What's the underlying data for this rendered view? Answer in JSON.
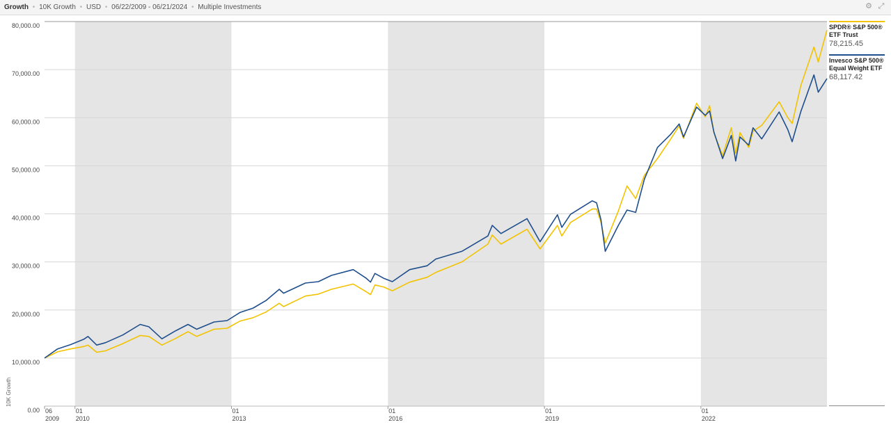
{
  "header": {
    "crumbs": [
      "Growth",
      "10K Growth",
      "USD",
      "06/22/2009 - 06/21/2024",
      "Multiple Investments"
    ],
    "settings_icon": "gear-icon",
    "expand_icon": "expand-icon"
  },
  "chart_data": {
    "type": "line",
    "title": "",
    "xlabel": "",
    "ylabel": "10K Growth",
    "ylim": [
      0,
      80000
    ],
    "y_ticks": [
      "80,000.00",
      "70,000.00",
      "60,000.00",
      "50,000.00",
      "40,000.00",
      "30,000.00",
      "20,000.00",
      "10,000.00",
      "0.00"
    ],
    "x_ticks": [
      {
        "month": "06",
        "year": "2009",
        "date": "2009-06"
      },
      {
        "month": "01",
        "year": "2010",
        "date": "2010-01"
      },
      {
        "month": "01",
        "year": "2013",
        "date": "2013-01"
      },
      {
        "month": "01",
        "year": "2016",
        "date": "2016-01"
      },
      {
        "month": "01",
        "year": "2019",
        "date": "2019-01"
      },
      {
        "month": "01",
        "year": "2022",
        "date": "2022-01"
      }
    ],
    "shaded_periods": [
      [
        "2010-01",
        "2013-01"
      ],
      [
        "2016-01",
        "2019-01"
      ],
      [
        "2022-01",
        "2024-06"
      ]
    ],
    "grid": true,
    "legend_position": "right",
    "colors": {
      "spy": "#f2c300",
      "rsp": "#1f4e8c",
      "shade": "#e5e5e5",
      "grid": "#d6d6d6"
    },
    "series": [
      {
        "name": "SPDR® S&P 500® ETF Trust",
        "legend_lines": [
          "SPDR® S&P 500®",
          "ETF Trust"
        ],
        "final_value": "78,215.45",
        "color": "#f2c300",
        "points": [
          [
            "2009-06",
            10000
          ],
          [
            "2009-09",
            11300
          ],
          [
            "2009-12",
            11900
          ],
          [
            "2010-03",
            12400
          ],
          [
            "2010-04",
            12700
          ],
          [
            "2010-06",
            11200
          ],
          [
            "2010-08",
            11500
          ],
          [
            "2010-12",
            13000
          ],
          [
            "2011-04",
            14700
          ],
          [
            "2011-06",
            14500
          ],
          [
            "2011-09",
            12700
          ],
          [
            "2011-12",
            14000
          ],
          [
            "2012-03",
            15500
          ],
          [
            "2012-05",
            14500
          ],
          [
            "2012-09",
            16000
          ],
          [
            "2012-12",
            16200
          ],
          [
            "2013-03",
            17700
          ],
          [
            "2013-06",
            18400
          ],
          [
            "2013-09",
            19600
          ],
          [
            "2013-12",
            21400
          ],
          [
            "2014-01",
            20700
          ],
          [
            "2014-06",
            22900
          ],
          [
            "2014-09",
            23300
          ],
          [
            "2014-12",
            24300
          ],
          [
            "2015-05",
            25400
          ],
          [
            "2015-08",
            23800
          ],
          [
            "2015-09",
            23200
          ],
          [
            "2015-10",
            25200
          ],
          [
            "2015-12",
            24800
          ],
          [
            "2016-02",
            24000
          ],
          [
            "2016-06",
            25800
          ],
          [
            "2016-10",
            26800
          ],
          [
            "2016-12",
            27800
          ],
          [
            "2017-06",
            30000
          ],
          [
            "2017-12",
            33700
          ],
          [
            "2018-01",
            35600
          ],
          [
            "2018-03",
            33700
          ],
          [
            "2018-09",
            36800
          ],
          [
            "2018-12",
            32700
          ],
          [
            "2019-04",
            37600
          ],
          [
            "2019-05",
            35400
          ],
          [
            "2019-07",
            38200
          ],
          [
            "2019-12",
            41000
          ],
          [
            "2020-01",
            41000
          ],
          [
            "2020-02",
            38300
          ],
          [
            "2020-03",
            33900
          ],
          [
            "2020-06",
            40600
          ],
          [
            "2020-08",
            45800
          ],
          [
            "2020-10",
            43200
          ],
          [
            "2020-12",
            48000
          ],
          [
            "2021-03",
            51500
          ],
          [
            "2021-06",
            55500
          ],
          [
            "2021-08",
            58300
          ],
          [
            "2021-09",
            55700
          ],
          [
            "2021-12",
            63000
          ],
          [
            "2022-02",
            60200
          ],
          [
            "2022-03",
            62500
          ],
          [
            "2022-04",
            56900
          ],
          [
            "2022-06",
            52100
          ],
          [
            "2022-08",
            57900
          ],
          [
            "2022-09",
            52600
          ],
          [
            "2022-10",
            56900
          ],
          [
            "2022-12",
            53800
          ],
          [
            "2023-01",
            57200
          ],
          [
            "2023-03",
            58400
          ],
          [
            "2023-07",
            63300
          ],
          [
            "2023-09",
            60000
          ],
          [
            "2023-10",
            58800
          ],
          [
            "2023-12",
            66700
          ],
          [
            "2024-03",
            74700
          ],
          [
            "2024-04",
            71600
          ],
          [
            "2024-06",
            78215
          ]
        ]
      },
      {
        "name": "Invesco S&P 500® Equal Weight ETF",
        "legend_lines": [
          "Invesco S&P 500®",
          "Equal Weight ETF"
        ],
        "final_value": "68,117.42",
        "color": "#1f4e8c",
        "points": [
          [
            "2009-06",
            10000
          ],
          [
            "2009-09",
            11900
          ],
          [
            "2009-12",
            12800
          ],
          [
            "2010-03",
            13900
          ],
          [
            "2010-04",
            14500
          ],
          [
            "2010-06",
            12700
          ],
          [
            "2010-08",
            13200
          ],
          [
            "2010-12",
            14800
          ],
          [
            "2011-04",
            17000
          ],
          [
            "2011-06",
            16500
          ],
          [
            "2011-09",
            14000
          ],
          [
            "2011-12",
            15600
          ],
          [
            "2012-03",
            17000
          ],
          [
            "2012-05",
            16000
          ],
          [
            "2012-09",
            17500
          ],
          [
            "2012-12",
            17800
          ],
          [
            "2013-03",
            19500
          ],
          [
            "2013-06",
            20400
          ],
          [
            "2013-09",
            22000
          ],
          [
            "2013-12",
            24300
          ],
          [
            "2014-01",
            23500
          ],
          [
            "2014-06",
            25600
          ],
          [
            "2014-09",
            25900
          ],
          [
            "2014-12",
            27200
          ],
          [
            "2015-05",
            28400
          ],
          [
            "2015-08",
            26600
          ],
          [
            "2015-09",
            25800
          ],
          [
            "2015-10",
            27600
          ],
          [
            "2015-12",
            26600
          ],
          [
            "2016-02",
            25900
          ],
          [
            "2016-06",
            28400
          ],
          [
            "2016-10",
            29200
          ],
          [
            "2016-12",
            30600
          ],
          [
            "2017-06",
            32200
          ],
          [
            "2017-12",
            35400
          ],
          [
            "2018-01",
            37600
          ],
          [
            "2018-03",
            35900
          ],
          [
            "2018-09",
            39000
          ],
          [
            "2018-12",
            34200
          ],
          [
            "2019-04",
            39800
          ],
          [
            "2019-05",
            37200
          ],
          [
            "2019-07",
            39900
          ],
          [
            "2019-12",
            42700
          ],
          [
            "2020-01",
            42300
          ],
          [
            "2020-02",
            38800
          ],
          [
            "2020-03",
            32200
          ],
          [
            "2020-06",
            37600
          ],
          [
            "2020-08",
            40800
          ],
          [
            "2020-10",
            40300
          ],
          [
            "2020-12",
            47200
          ],
          [
            "2021-03",
            53800
          ],
          [
            "2021-06",
            56500
          ],
          [
            "2021-08",
            58700
          ],
          [
            "2021-09",
            56000
          ],
          [
            "2021-12",
            62200
          ],
          [
            "2022-02",
            60500
          ],
          [
            "2022-03",
            61400
          ],
          [
            "2022-04",
            57000
          ],
          [
            "2022-06",
            51500
          ],
          [
            "2022-08",
            56300
          ],
          [
            "2022-09",
            51000
          ],
          [
            "2022-10",
            56000
          ],
          [
            "2022-12",
            54300
          ],
          [
            "2023-01",
            57900
          ],
          [
            "2023-03",
            55600
          ],
          [
            "2023-07",
            61200
          ],
          [
            "2023-09",
            57500
          ],
          [
            "2023-10",
            55000
          ],
          [
            "2023-12",
            61300
          ],
          [
            "2024-03",
            68900
          ],
          [
            "2024-04",
            65300
          ],
          [
            "2024-06",
            68117
          ]
        ]
      }
    ]
  }
}
